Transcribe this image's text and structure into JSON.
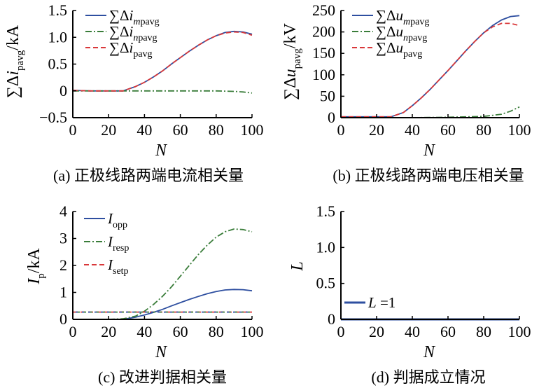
{
  "chart_data": [
    {
      "type": "line",
      "caption": "(a) 正极线路两端电流相关量",
      "xlabel": "N",
      "ylabel": "∑Δi_pavg/kA",
      "xlim": [
        0,
        100
      ],
      "ylim": [
        -0.5,
        1.5
      ],
      "xticks": [
        "0",
        "20",
        "40",
        "60",
        "80",
        "100"
      ],
      "yticks": [
        "−0.5",
        "0",
        "0.5",
        "1.0",
        "1.5"
      ],
      "ytick_values": [
        -0.5,
        0,
        0.5,
        1.0,
        1.5
      ],
      "legend_position": "top-right",
      "series": [
        {
          "name": "∑Δi_mpavg",
          "color": "#2e4fa0",
          "style": "solid",
          "x": [
            0,
            10,
            20,
            28,
            35,
            40,
            45,
            50,
            55,
            60,
            65,
            70,
            75,
            80,
            85,
            90,
            95,
            100
          ],
          "y": [
            0.01,
            0.0,
            0.0,
            0.0,
            0.08,
            0.16,
            0.26,
            0.37,
            0.5,
            0.62,
            0.74,
            0.85,
            0.95,
            1.03,
            1.09,
            1.11,
            1.1,
            1.06
          ]
        },
        {
          "name": "∑Δi_npavg",
          "color": "#3a7d3a",
          "style": "dashdot",
          "x": [
            0,
            10,
            20,
            30,
            40,
            50,
            60,
            70,
            80,
            90,
            95,
            100
          ],
          "y": [
            0.0,
            0.0,
            0.0,
            0.0,
            0.0,
            0.0,
            0.0,
            0.0,
            0.0,
            -0.01,
            -0.02,
            -0.04
          ]
        },
        {
          "name": "∑Δi_pavg",
          "color": "#d9383a",
          "style": "dashed",
          "x": [
            0,
            10,
            20,
            28,
            35,
            40,
            45,
            50,
            55,
            60,
            65,
            70,
            75,
            80,
            85,
            90,
            95,
            100
          ],
          "y": [
            0.01,
            0.0,
            0.0,
            0.0,
            0.08,
            0.16,
            0.26,
            0.37,
            0.5,
            0.62,
            0.74,
            0.85,
            0.95,
            1.03,
            1.08,
            1.1,
            1.09,
            1.04
          ]
        }
      ]
    },
    {
      "type": "line",
      "caption": "(b) 正极线路两端电压相关量",
      "xlabel": "N",
      "ylabel": "∑Δu_pavg/kV",
      "xlim": [
        0,
        100
      ],
      "ylim": [
        0,
        250
      ],
      "xticks": [
        "0",
        "20",
        "40",
        "60",
        "80",
        "100"
      ],
      "yticks": [
        "0",
        "50",
        "100",
        "150",
        "200",
        "250"
      ],
      "ytick_values": [
        0,
        50,
        100,
        150,
        200,
        250
      ],
      "legend_position": "top-right",
      "series": [
        {
          "name": "∑Δu_mpavg",
          "color": "#2e4fa0",
          "style": "solid",
          "x": [
            0,
            10,
            20,
            28,
            35,
            40,
            45,
            50,
            55,
            60,
            65,
            70,
            75,
            80,
            85,
            90,
            95,
            100
          ],
          "y": [
            2,
            2,
            2,
            2,
            12,
            28,
            46,
            66,
            88,
            110,
            133,
            156,
            178,
            198,
            215,
            228,
            236,
            238
          ]
        },
        {
          "name": "∑Δu_npavg",
          "color": "#3a7d3a",
          "style": "dashdot",
          "x": [
            0,
            20,
            40,
            60,
            80,
            90,
            95,
            100
          ],
          "y": [
            0,
            0,
            0,
            1,
            3,
            8,
            15,
            25
          ]
        },
        {
          "name": "∑Δu_pavg",
          "color": "#d9383a",
          "style": "dashed",
          "x": [
            0,
            10,
            20,
            28,
            35,
            40,
            45,
            50,
            55,
            60,
            65,
            70,
            75,
            80,
            85,
            90,
            95,
            100
          ],
          "y": [
            2,
            2,
            2,
            2,
            12,
            28,
            46,
            66,
            88,
            110,
            133,
            156,
            178,
            198,
            212,
            220,
            220,
            215
          ]
        }
      ]
    },
    {
      "type": "line",
      "caption": "(c) 改进判据相关量",
      "xlabel": "N",
      "ylabel": "I_p/kA",
      "xlim": [
        0,
        100
      ],
      "ylim": [
        0,
        4
      ],
      "xticks": [
        "0",
        "20",
        "40",
        "60",
        "80",
        "100"
      ],
      "yticks": [
        "0",
        "1",
        "2",
        "3",
        "4"
      ],
      "ytick_values": [
        0,
        1,
        2,
        3,
        4
      ],
      "legend_position": "top-left",
      "series": [
        {
          "name": "I_opp",
          "color": "#2e4fa0",
          "style": "solid",
          "x": [
            0,
            10,
            20,
            28,
            35,
            40,
            45,
            50,
            55,
            60,
            65,
            70,
            75,
            80,
            85,
            90,
            95,
            100
          ],
          "y": [
            0.0,
            0.0,
            0.0,
            0.0,
            0.08,
            0.16,
            0.26,
            0.37,
            0.5,
            0.62,
            0.74,
            0.85,
            0.95,
            1.03,
            1.09,
            1.11,
            1.1,
            1.06
          ]
        },
        {
          "name": "I_resp",
          "color": "#3a7d3a",
          "style": "dashdot",
          "x": [
            0,
            10,
            20,
            28,
            35,
            40,
            45,
            50,
            55,
            60,
            65,
            70,
            75,
            80,
            85,
            90,
            95,
            100
          ],
          "y": [
            0.0,
            0.0,
            0.0,
            0.02,
            0.12,
            0.3,
            0.55,
            0.85,
            1.2,
            1.6,
            2.0,
            2.4,
            2.75,
            3.05,
            3.25,
            3.35,
            3.33,
            3.25
          ]
        },
        {
          "name": "I_setp",
          "color": "#d9383a",
          "style": "dashed",
          "x": [
            0,
            100
          ],
          "y": [
            0.27,
            0.27
          ]
        }
      ]
    },
    {
      "type": "line",
      "caption": "(d) 判据成立情况",
      "xlabel": "N",
      "ylabel": "L",
      "xlim": [
        0,
        100
      ],
      "ylim": [
        0,
        1.5
      ],
      "xticks": [
        "0",
        "20",
        "40",
        "60",
        "80",
        "100"
      ],
      "yticks": [
        "0",
        "0.5",
        "1.0",
        "1.5"
      ],
      "ytick_values": [
        0,
        0.5,
        1.0,
        1.5
      ],
      "legend_position": "bottom-left",
      "series": [
        {
          "name": "L =1",
          "color": "#2e4fa0",
          "style": "solid",
          "x": [
            0,
            100
          ],
          "y": [
            0,
            0
          ]
        }
      ]
    }
  ]
}
